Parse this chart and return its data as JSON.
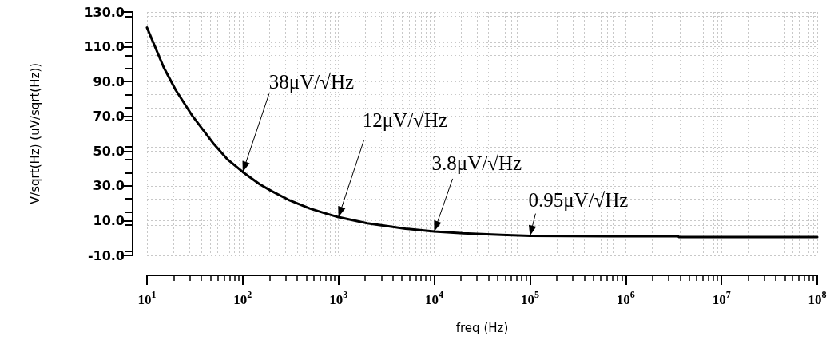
{
  "chart_data": {
    "type": "line",
    "xlabel": "freq (Hz)",
    "ylabel": "V/sqrt(Hz) (uV/sqrt(Hz))",
    "log": "x",
    "x": [
      10,
      15,
      20,
      30,
      50,
      70,
      100,
      150,
      200,
      300,
      500,
      700,
      1000,
      2000,
      5000,
      10000,
      20000,
      50000,
      100000,
      1000000,
      3500000,
      3600000,
      100000000
    ],
    "series": [
      {
        "color": "#000000",
        "values": [
          121,
          98,
          85,
          70,
          54,
          45,
          38,
          31,
          27,
          22,
          17,
          14.5,
          12,
          8.5,
          5.4,
          3.8,
          2.7,
          1.8,
          1.2,
          1.0,
          1.0,
          0.6,
          0.6
        ]
      }
    ],
    "xlim": [
      10,
      100000000
    ],
    "xticks": [
      {
        "value": 10,
        "label": "10$^{1}$"
      },
      {
        "value": 100,
        "label": "10$^{2}$"
      },
      {
        "value": 1000,
        "label": "10$^{3}$"
      },
      {
        "value": 10000,
        "label": "10$^{4}$"
      },
      {
        "value": 100000,
        "label": "10$^{5}$"
      },
      {
        "value": 1000000,
        "label": "10$^{6}$"
      },
      {
        "value": 10000000,
        "label": "10$^{7}$"
      },
      {
        "value": 100000000,
        "label": "10$^{8}$"
      }
    ],
    "ylim": [
      -10,
      130
    ],
    "yticks": [
      {
        "value": -10,
        "label": "-10.0"
      },
      {
        "value": 10,
        "label": "10.0"
      },
      {
        "value": 30,
        "label": "30.0"
      },
      {
        "value": 50,
        "label": "50.0"
      },
      {
        "value": 70,
        "label": "70.0"
      },
      {
        "value": 90,
        "label": "90.0"
      },
      {
        "value": 110,
        "label": "110.0"
      },
      {
        "value": 130,
        "label": "130.0"
      }
    ],
    "grid": true,
    "marker": "none",
    "line_style": "solid",
    "annotations": [
      {
        "text": "38μV/√Hz",
        "x": 100,
        "y": 38
      },
      {
        "text": "12μV/√Hz",
        "x": 1000,
        "y": 12
      },
      {
        "text": "3.8μV/√Hz",
        "x": 10000,
        "y": 3.8
      },
      {
        "text": "0.95μV/√Hz",
        "x": 100000,
        "y": 1.2
      }
    ]
  }
}
